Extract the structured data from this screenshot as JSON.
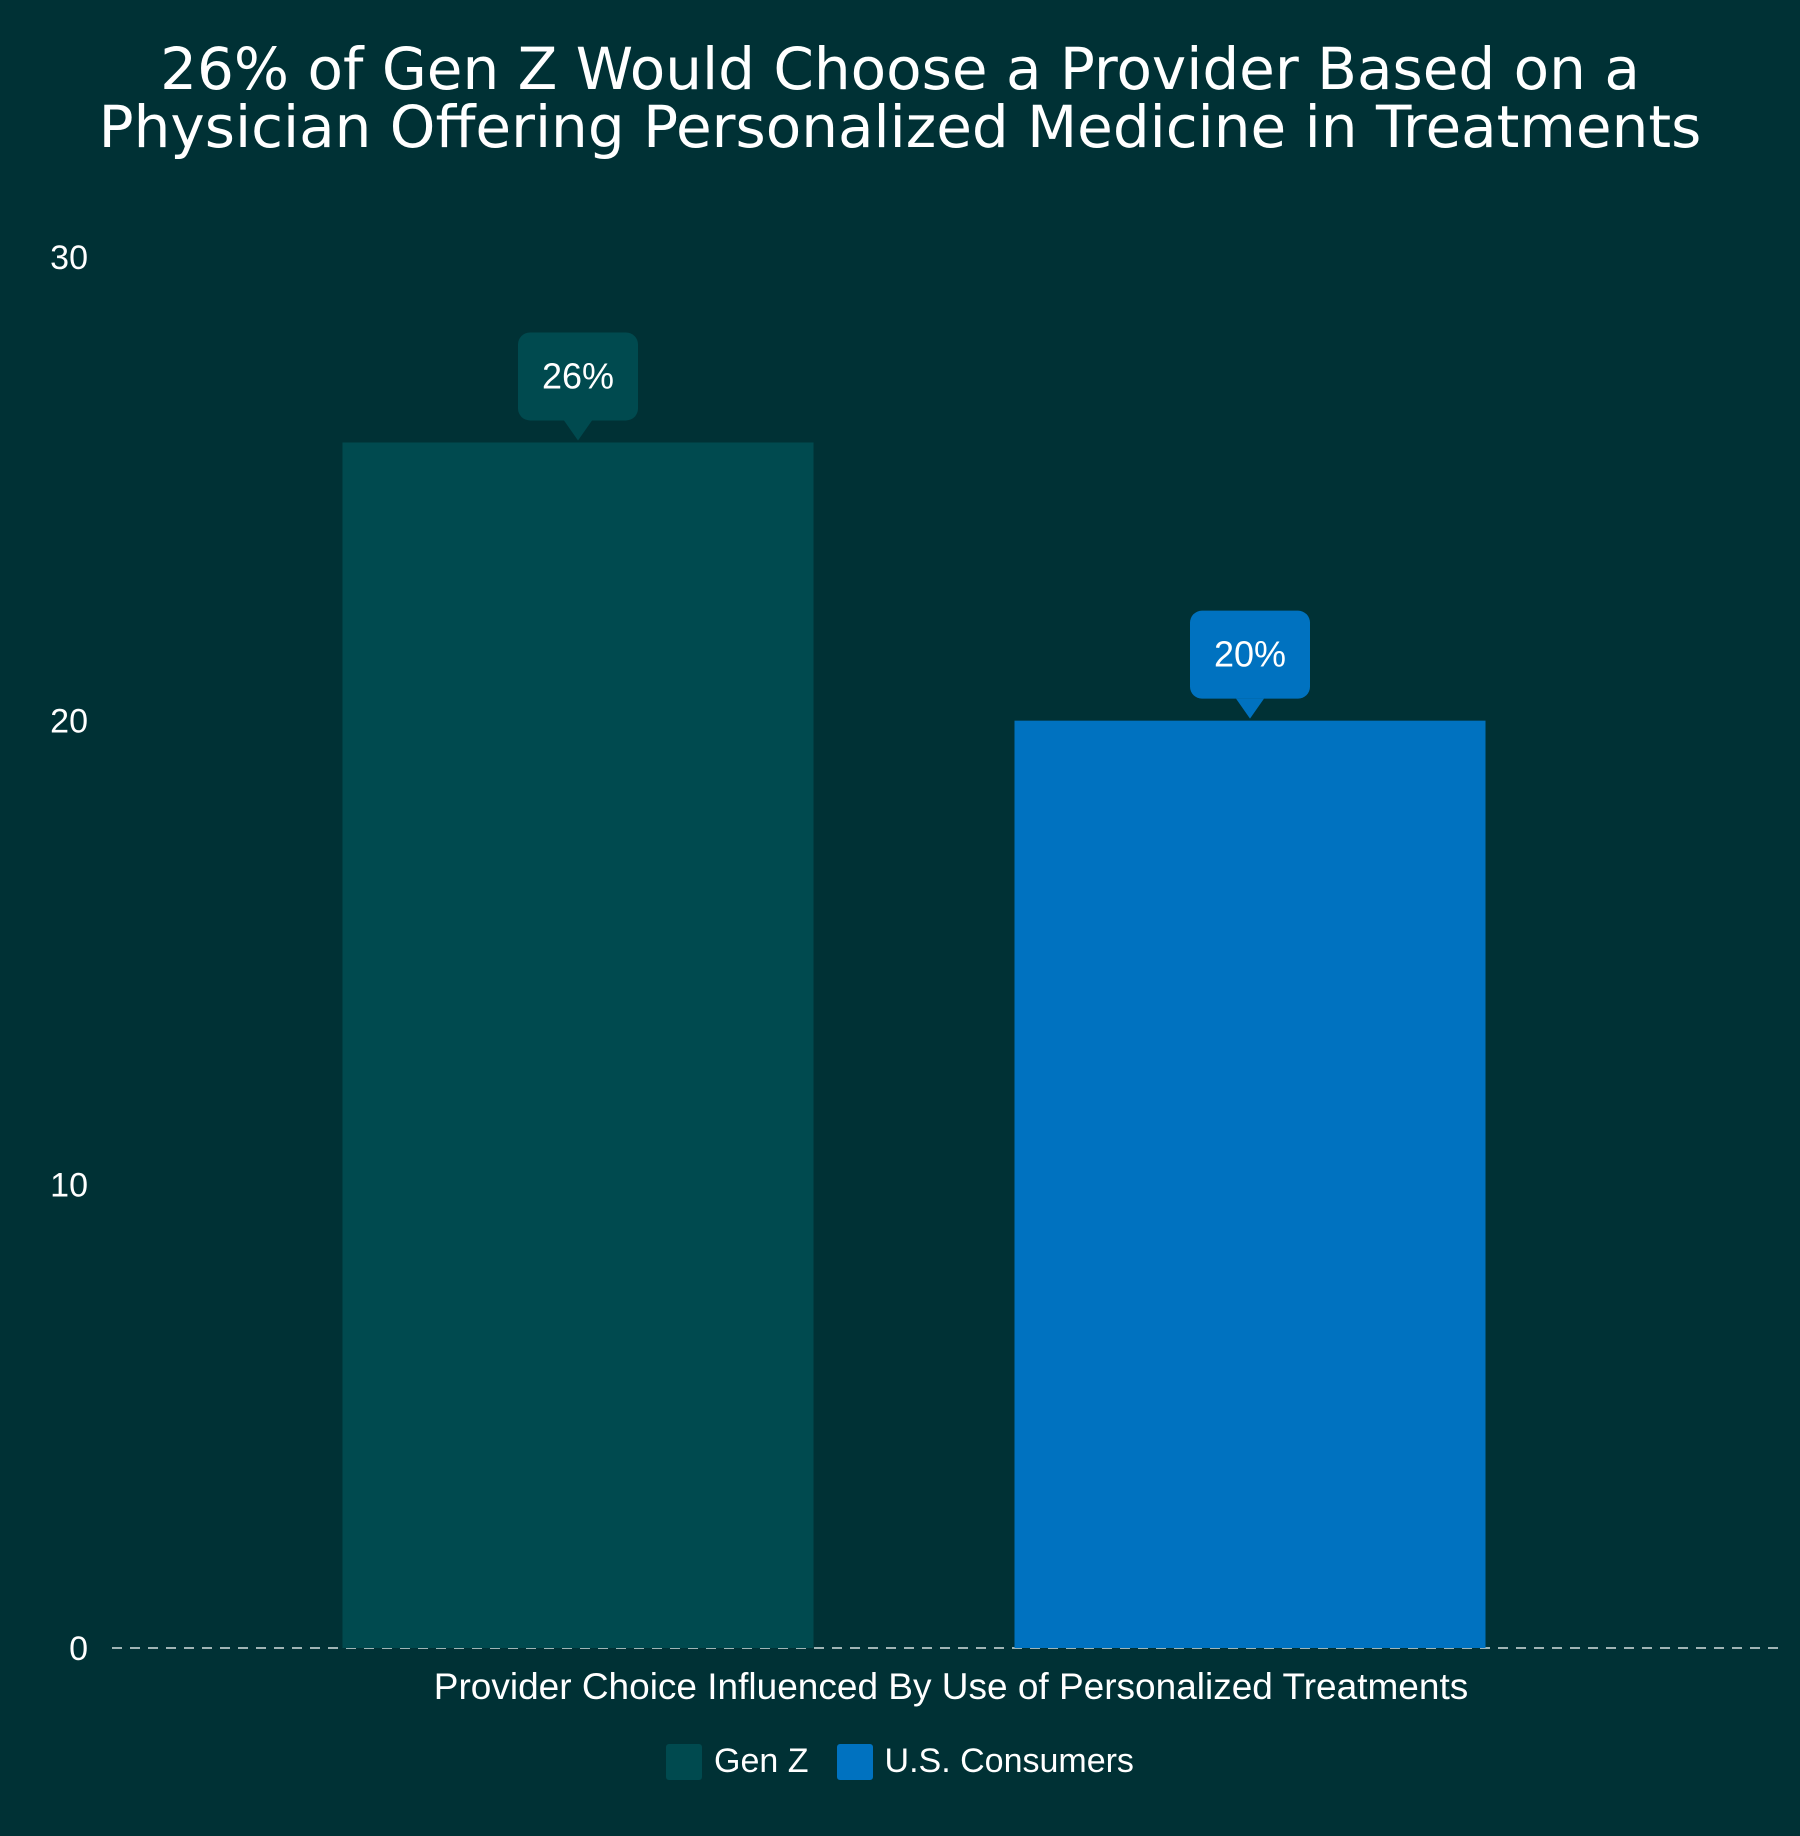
{
  "chart_data": {
    "type": "bar",
    "title_lines": [
      "26% of Gen Z Would Choose a Provider Based on a",
      "Physician Offering Personalized Medicine in Treatments"
    ],
    "categories": [
      "Provider Choice Influenced By Use of Personalized Treatments"
    ],
    "series": [
      {
        "name": "Gen Z",
        "values": [
          26
        ],
        "label": "26%",
        "color": "#004a4f"
      },
      {
        "name": "U.S. Consumers",
        "values": [
          20
        ],
        "label": "20%",
        "color": "#0072c0"
      }
    ],
    "y_ticks": [
      "0",
      "10",
      "20",
      "30"
    ],
    "ylim": [
      0,
      30
    ],
    "grid": false,
    "baseline": "dashed",
    "legend_position": "bottom-center",
    "colors": {
      "background": "#003135",
      "text": "#ffffff",
      "baseline": "#9fb4b5"
    }
  }
}
